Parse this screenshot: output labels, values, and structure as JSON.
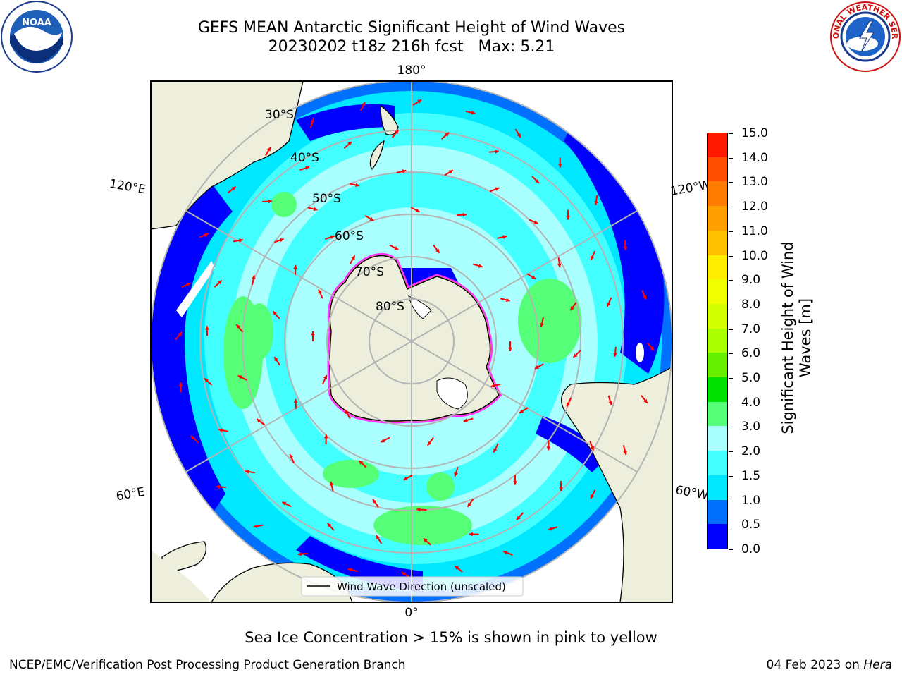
{
  "header": {
    "title_line1": "GEFS MEAN Antarctic Significant Height of Wind Waves",
    "title_line2": "20230202 t18z 216h fcst   Max: 5.21"
  },
  "logos": {
    "left": "noaa-logo",
    "right": "national-weather-service-logo",
    "left_text": "NOAA",
    "right_text": "NATIONAL WEATHER SERVICE"
  },
  "map": {
    "projection": "south-polar-stereographic",
    "longitude_labels": {
      "top": "180°",
      "bottom": "0°",
      "left_upper": "120°E",
      "left_lower": "60°E",
      "right_upper": "120°W",
      "right_lower": "60°W"
    },
    "latitude_labels": [
      "30°S",
      "40°S",
      "50°S",
      "60°S",
      "70°S",
      "80°S"
    ],
    "legend": "Wind Wave Direction (unscaled)",
    "colors": {
      "land": "#eeeedd",
      "graticule": "#b4b4b4",
      "arrows": "#ff0000",
      "sea_ice": "#ff33ff"
    }
  },
  "colorbar": {
    "title": "Significant Height of Wind Waves [m]",
    "title_line1": "Significant Height of Wind",
    "title_line2": "Waves [m]",
    "labels": [
      "0.0",
      "0.5",
      "1.0",
      "1.5",
      "2.0",
      "3.0",
      "4.0",
      "5.0",
      "6.0",
      "7.0",
      "8.0",
      "9.0",
      "10.0",
      "11.0",
      "12.0",
      "13.0",
      "14.0",
      "15.0"
    ],
    "colors": [
      "#0000ff",
      "#0070ff",
      "#00e8ff",
      "#44ffff",
      "#aaffff",
      "#55ff77",
      "#00e100",
      "#66f000",
      "#aaff00",
      "#d4ff00",
      "#f0ff00",
      "#ffee00",
      "#ffc000",
      "#ffa000",
      "#ff7a00",
      "#ff4e00",
      "#ff1800"
    ]
  },
  "caption": "Sea Ice Concentration > 15% is shown in pink to yellow",
  "footer": {
    "left": "NCEP/EMC/Verification Post Processing Product Generation Branch",
    "right_prefix": "04 Feb 2023 on ",
    "right_host": "Hera"
  }
}
